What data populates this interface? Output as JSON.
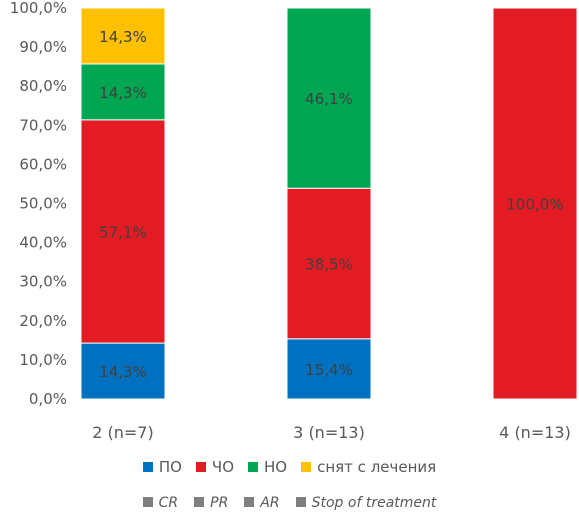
{
  "chart_data": {
    "type": "bar",
    "stacked": true,
    "categories": [
      "2 (n=7)",
      "3 (n=13)",
      "4 (n=13)"
    ],
    "ylim": [
      0,
      100
    ],
    "yticks": [
      "0,0%",
      "10,0%",
      "20,0%",
      "30,0%",
      "40,0%",
      "50,0%",
      "60,0%",
      "70,0%",
      "80,0%",
      "90,0%",
      "100,0%"
    ],
    "series": [
      {
        "name": "ПО",
        "color": "#0070c0",
        "values": [
          14.3,
          15.4,
          0
        ],
        "labels": [
          "14,3%",
          "15,4%",
          ""
        ]
      },
      {
        "name": "ЧО",
        "color": "#e31b23",
        "values": [
          57.1,
          38.5,
          100.0
        ],
        "labels": [
          "57,1%",
          "38,5%",
          "100,0%"
        ]
      },
      {
        "name": "НО",
        "color": "#00a651",
        "values": [
          14.3,
          46.1,
          0
        ],
        "labels": [
          "14,3%",
          "46,1%",
          ""
        ]
      },
      {
        "name": "снят с лечения",
        "color": "#ffc000",
        "values": [
          14.3,
          0,
          0
        ],
        "labels": [
          "14,3%",
          "",
          ""
        ]
      }
    ],
    "legend_secondary": [
      "CR",
      "PR",
      "AR",
      "Stop of treatment"
    ],
    "legend_secondary_color": "#7f7f7f",
    "legend": "bottom",
    "grid": false
  }
}
